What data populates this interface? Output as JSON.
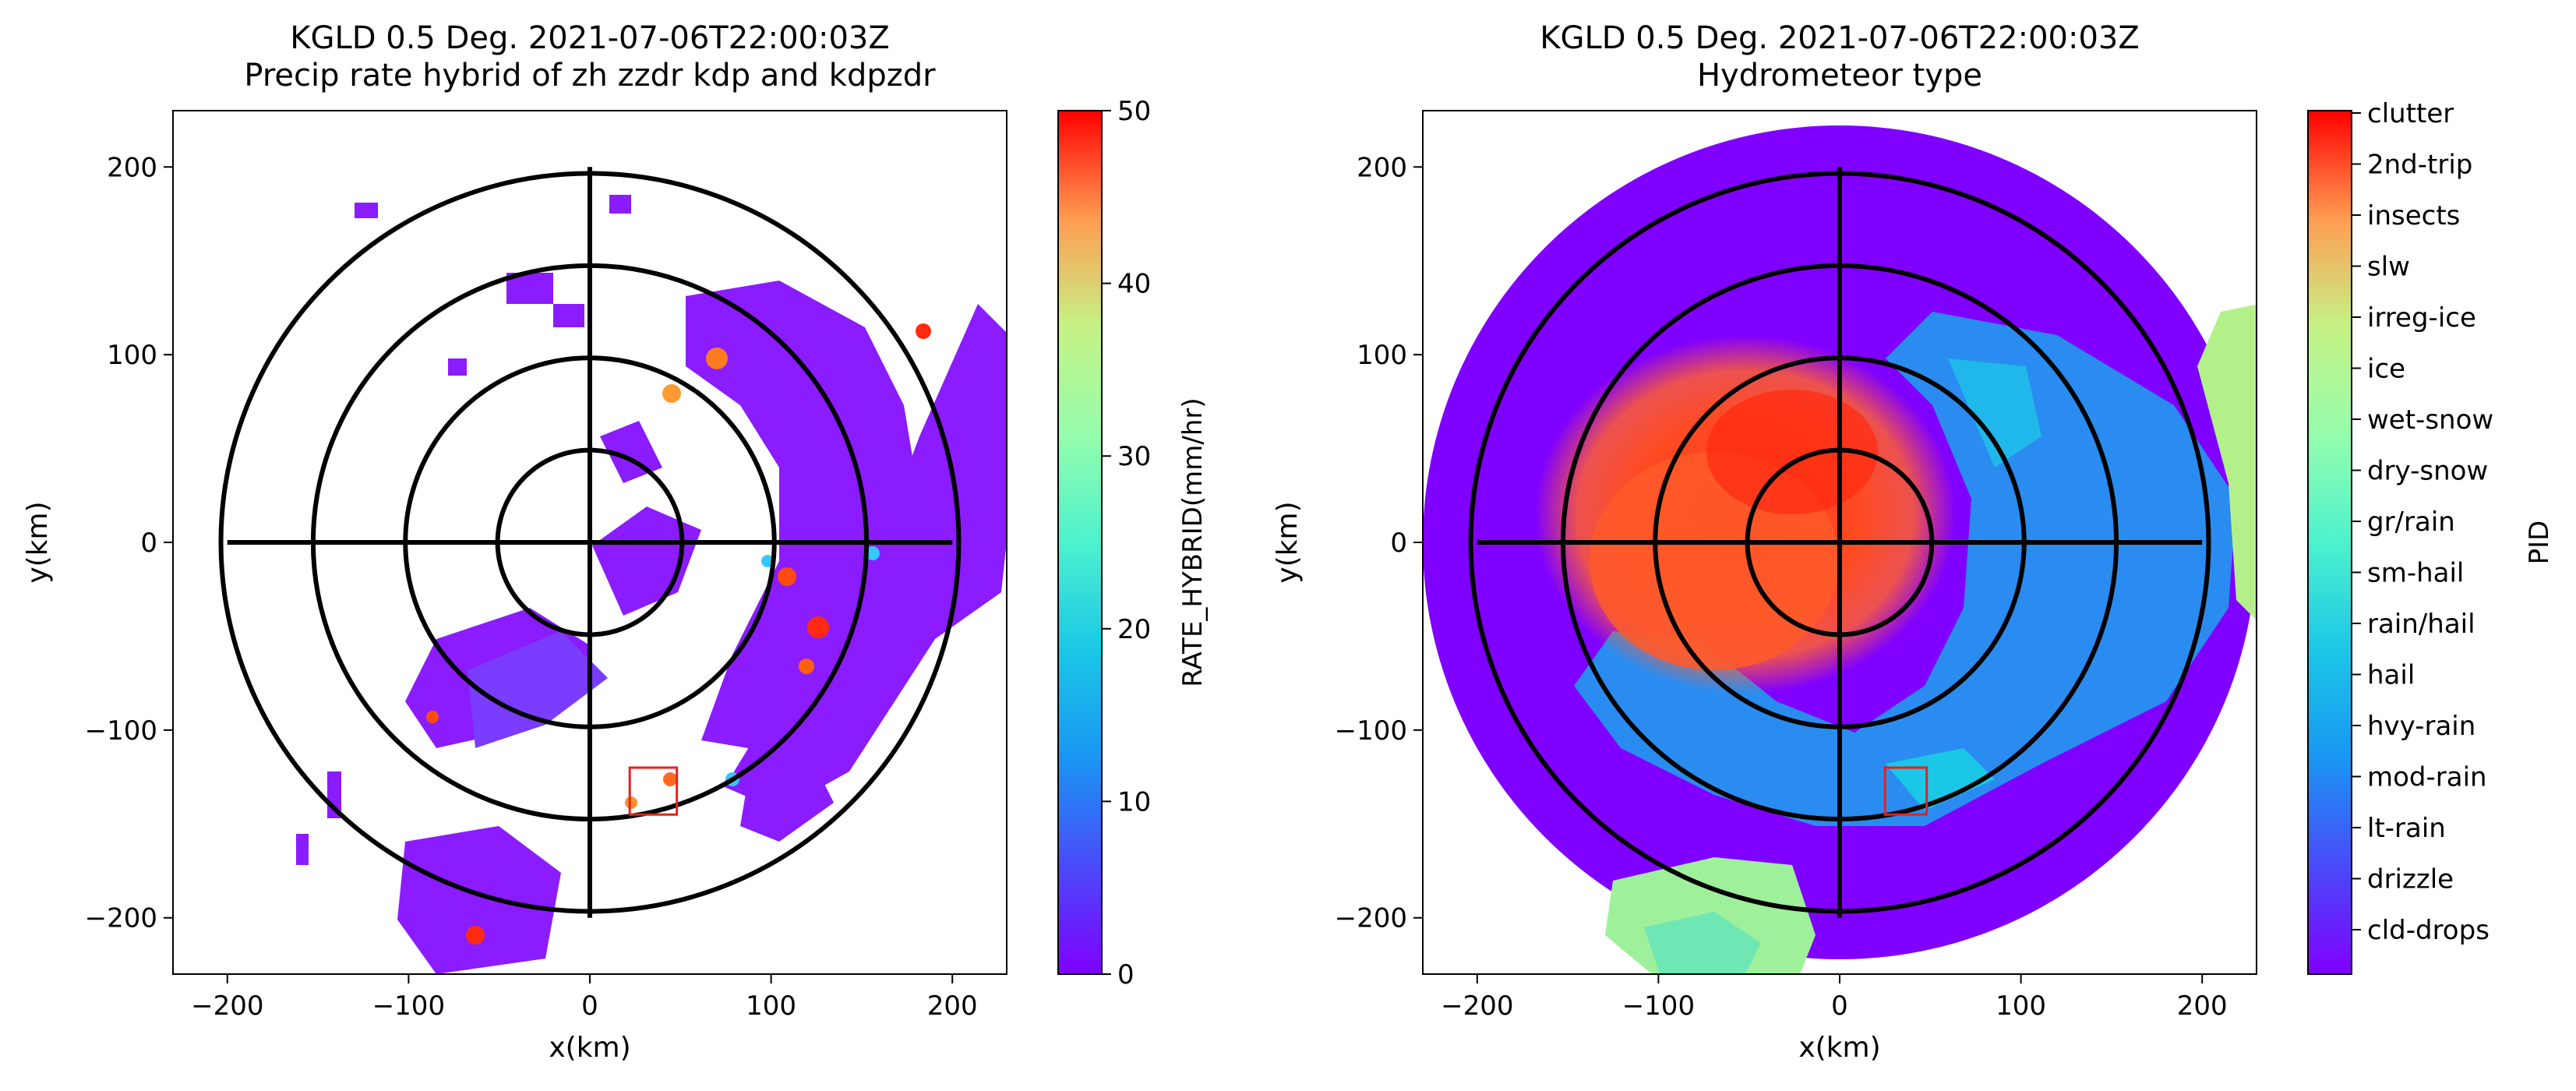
{
  "chart_data": [
    {
      "type": "heatmap",
      "title": "KGLD 0.5 Deg. 2021-07-06T22:00:03Z",
      "subtitle": "Precip rate hybrid of zh zzdr kdp and kdpzdr",
      "xlabel": "x(km)",
      "ylabel": "y(km)",
      "xlim": [
        -230,
        230
      ],
      "ylim": [
        -230,
        230
      ],
      "xticks": [
        -200,
        -100,
        0,
        100,
        200
      ],
      "yticks": [
        -200,
        -100,
        0,
        100,
        200
      ],
      "xtick_labels": [
        "−200",
        "−100",
        "0",
        "100",
        "200"
      ],
      "ytick_labels": [
        "−200",
        "−100",
        "0",
        "100",
        "200"
      ],
      "range_rings_km": [
        50,
        100,
        150,
        200
      ],
      "highlight_box_km": {
        "x": [
          22,
          48
        ],
        "y": [
          -145,
          -120
        ]
      },
      "colorbar": {
        "label": "RATE_HYBRID(mm/hr)",
        "min": 0,
        "max": 50,
        "ticks": [
          0,
          10,
          20,
          30,
          40,
          50
        ],
        "tick_labels": [
          "0",
          "10",
          "20",
          "30",
          "40",
          "50"
        ],
        "colormap": "rainbow"
      }
    },
    {
      "type": "heatmap",
      "title": "KGLD 0.5 Deg. 2021-07-06T22:00:03Z",
      "subtitle": "Hydrometeor type",
      "xlabel": "x(km)",
      "ylabel": "y(km)",
      "xlim": [
        -230,
        230
      ],
      "ylim": [
        -230,
        230
      ],
      "xticks": [
        -200,
        -100,
        0,
        100,
        200
      ],
      "yticks": [
        -200,
        -100,
        0,
        100,
        200
      ],
      "xtick_labels": [
        "−200",
        "−100",
        "0",
        "100",
        "200"
      ],
      "ytick_labels": [
        "−200",
        "−100",
        "0",
        "100",
        "200"
      ],
      "range_rings_km": [
        50,
        100,
        150,
        200
      ],
      "highlight_box_km": {
        "x": [
          25,
          48
        ],
        "y": [
          -145,
          -120
        ]
      },
      "colorbar": {
        "label": "PID",
        "categories": [
          "clutter",
          "2nd-trip",
          "insects",
          "slw",
          "irreg-ice",
          "ice",
          "wet-snow",
          "dry-snow",
          "gr/rain",
          "sm-hail",
          "rain/hail",
          "hail",
          "hvy-rain",
          "mod-rain",
          "lt-rain",
          "drizzle",
          "cld-drops"
        ],
        "colormap": "rainbow"
      }
    }
  ]
}
